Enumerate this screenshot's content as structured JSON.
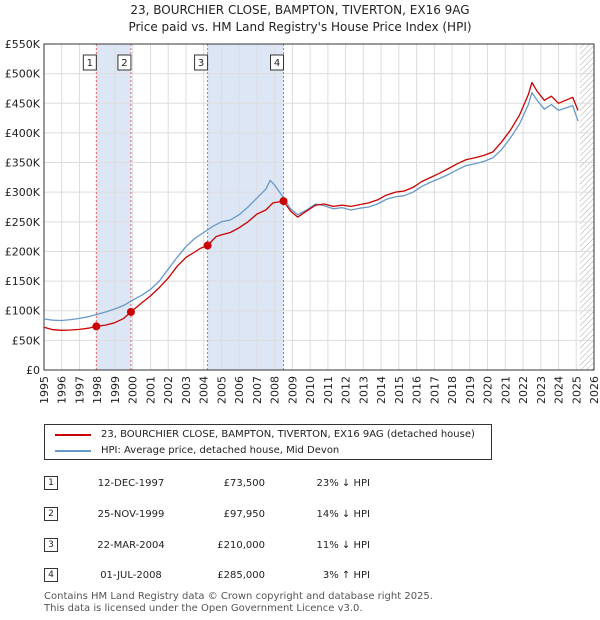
{
  "title_line1": "23, BOURCHIER CLOSE, BAMPTON, TIVERTON, EX16 9AG",
  "title_line2": "Price paid vs. HM Land Registry's House Price Index (HPI)",
  "chart_data": {
    "type": "line",
    "title": "23, BOURCHIER CLOSE, BAMPTON, TIVERTON, EX16 9AG",
    "subtitle": "Price paid vs. HM Land Registry's House Price Index (HPI)",
    "xlabel": "",
    "ylabel": "",
    "xlim": [
      1995,
      2026
    ],
    "ylim": [
      0,
      550000
    ],
    "x_ticks": [
      1995,
      1996,
      1997,
      1998,
      1999,
      2000,
      2001,
      2002,
      2003,
      2004,
      2005,
      2006,
      2007,
      2008,
      2009,
      2010,
      2011,
      2012,
      2013,
      2014,
      2015,
      2016,
      2017,
      2018,
      2019,
      2020,
      2021,
      2022,
      2023,
      2024,
      2025,
      2026
    ],
    "y_ticks": [
      {
        "value": 0,
        "label": "£0"
      },
      {
        "value": 50000,
        "label": "£50K"
      },
      {
        "value": 100000,
        "label": "£100K"
      },
      {
        "value": 150000,
        "label": "£150K"
      },
      {
        "value": 200000,
        "label": "£200K"
      },
      {
        "value": 250000,
        "label": "£250K"
      },
      {
        "value": 300000,
        "label": "£300K"
      },
      {
        "value": 350000,
        "label": "£350K"
      },
      {
        "value": 400000,
        "label": "£400K"
      },
      {
        "value": 450000,
        "label": "£450K"
      },
      {
        "value": 500000,
        "label": "£500K"
      },
      {
        "value": 550000,
        "label": "£550K"
      }
    ],
    "grid": true,
    "data_end": 2025.2,
    "series": [
      {
        "name": "23, BOURCHIER CLOSE, BAMPTON, TIVERTON, EX16 9AG (detached house)",
        "color": "#cc0000",
        "points": [
          [
            1995.0,
            72000
          ],
          [
            1995.5,
            68000
          ],
          [
            1996.0,
            67000
          ],
          [
            1996.5,
            67500
          ],
          [
            1997.0,
            68500
          ],
          [
            1997.5,
            70500
          ],
          [
            1997.95,
            73500
          ],
          [
            1998.5,
            76000
          ],
          [
            1999.0,
            80000
          ],
          [
            1999.5,
            87000
          ],
          [
            1999.9,
            97950
          ],
          [
            2000.5,
            113000
          ],
          [
            2001.0,
            125000
          ],
          [
            2001.5,
            139000
          ],
          [
            2002.0,
            155000
          ],
          [
            2002.5,
            175000
          ],
          [
            2003.0,
            190000
          ],
          [
            2003.5,
            199000
          ],
          [
            2003.8,
            205000
          ],
          [
            2004.22,
            210000
          ],
          [
            2004.7,
            225000
          ],
          [
            2005.0,
            228000
          ],
          [
            2005.5,
            232000
          ],
          [
            2006.0,
            240000
          ],
          [
            2006.5,
            250000
          ],
          [
            2007.0,
            263000
          ],
          [
            2007.5,
            270000
          ],
          [
            2007.9,
            282000
          ],
          [
            2008.5,
            285000
          ],
          [
            2008.9,
            268000
          ],
          [
            2009.3,
            258000
          ],
          [
            2009.8,
            268000
          ],
          [
            2010.3,
            278000
          ],
          [
            2010.8,
            280000
          ],
          [
            2011.3,
            276000
          ],
          [
            2011.8,
            278000
          ],
          [
            2012.3,
            276000
          ],
          [
            2012.8,
            279000
          ],
          [
            2013.3,
            282000
          ],
          [
            2013.8,
            287000
          ],
          [
            2014.3,
            295000
          ],
          [
            2014.8,
            300000
          ],
          [
            2015.3,
            302000
          ],
          [
            2015.8,
            308000
          ],
          [
            2016.3,
            318000
          ],
          [
            2016.8,
            325000
          ],
          [
            2017.3,
            332000
          ],
          [
            2017.8,
            340000
          ],
          [
            2018.3,
            348000
          ],
          [
            2018.8,
            355000
          ],
          [
            2019.3,
            358000
          ],
          [
            2019.8,
            362000
          ],
          [
            2020.3,
            368000
          ],
          [
            2020.8,
            385000
          ],
          [
            2021.3,
            405000
          ],
          [
            2021.8,
            430000
          ],
          [
            2022.3,
            465000
          ],
          [
            2022.5,
            485000
          ],
          [
            2022.8,
            470000
          ],
          [
            2023.2,
            455000
          ],
          [
            2023.6,
            462000
          ],
          [
            2024.0,
            450000
          ],
          [
            2024.4,
            455000
          ],
          [
            2024.8,
            460000
          ],
          [
            2025.1,
            438000
          ]
        ]
      },
      {
        "name": "HPI: Average price, detached house, Mid Devon",
        "color": "#6699cc",
        "points": [
          [
            1995.0,
            86000
          ],
          [
            1995.5,
            84000
          ],
          [
            1996.0,
            83500
          ],
          [
            1996.5,
            85000
          ],
          [
            1997.0,
            87000
          ],
          [
            1997.5,
            90000
          ],
          [
            1998.0,
            94000
          ],
          [
            1998.5,
            98000
          ],
          [
            1999.0,
            103000
          ],
          [
            1999.5,
            109000
          ],
          [
            2000.0,
            118000
          ],
          [
            2000.5,
            126000
          ],
          [
            2001.0,
            136000
          ],
          [
            2001.5,
            150000
          ],
          [
            2002.0,
            170000
          ],
          [
            2002.5,
            190000
          ],
          [
            2003.0,
            208000
          ],
          [
            2003.5,
            222000
          ],
          [
            2004.0,
            232000
          ],
          [
            2004.5,
            242000
          ],
          [
            2005.0,
            250000
          ],
          [
            2005.5,
            253000
          ],
          [
            2006.0,
            262000
          ],
          [
            2006.5,
            275000
          ],
          [
            2007.0,
            290000
          ],
          [
            2007.5,
            305000
          ],
          [
            2007.75,
            320000
          ],
          [
            2008.0,
            312000
          ],
          [
            2008.4,
            295000
          ],
          [
            2008.9,
            272000
          ],
          [
            2009.3,
            262000
          ],
          [
            2009.8,
            270000
          ],
          [
            2010.3,
            280000
          ],
          [
            2010.8,
            277000
          ],
          [
            2011.3,
            272000
          ],
          [
            2011.8,
            274000
          ],
          [
            2012.3,
            270000
          ],
          [
            2012.8,
            273000
          ],
          [
            2013.3,
            275000
          ],
          [
            2013.8,
            280000
          ],
          [
            2014.3,
            288000
          ],
          [
            2014.8,
            292000
          ],
          [
            2015.3,
            294000
          ],
          [
            2015.8,
            300000
          ],
          [
            2016.3,
            310000
          ],
          [
            2016.8,
            317000
          ],
          [
            2017.3,
            323000
          ],
          [
            2017.8,
            330000
          ],
          [
            2018.3,
            338000
          ],
          [
            2018.8,
            345000
          ],
          [
            2019.3,
            348000
          ],
          [
            2019.8,
            352000
          ],
          [
            2020.3,
            358000
          ],
          [
            2020.8,
            372000
          ],
          [
            2021.3,
            392000
          ],
          [
            2021.8,
            415000
          ],
          [
            2022.3,
            448000
          ],
          [
            2022.5,
            468000
          ],
          [
            2022.8,
            455000
          ],
          [
            2023.2,
            440000
          ],
          [
            2023.6,
            448000
          ],
          [
            2024.0,
            438000
          ],
          [
            2024.4,
            442000
          ],
          [
            2024.8,
            446000
          ],
          [
            2025.1,
            420000
          ]
        ]
      }
    ],
    "transactions": [
      {
        "marker": "1",
        "date": "12-DEC-1997",
        "x": 1997.95,
        "price": 73500,
        "price_label": "£73,500",
        "hpi": "23% ↓ HPI"
      },
      {
        "marker": "2",
        "date": "25-NOV-1999",
        "x": 1999.9,
        "price": 97950,
        "price_label": "£97,950",
        "hpi": "14% ↓ HPI"
      },
      {
        "marker": "3",
        "date": "22-MAR-2004",
        "x": 2004.22,
        "price": 210000,
        "price_label": "£210,000",
        "hpi": "11% ↓ HPI"
      },
      {
        "marker": "4",
        "date": "01-JUL-2008",
        "x": 2008.5,
        "price": 285000,
        "price_label": "£285,000",
        "hpi": "3% ↑ HPI"
      }
    ],
    "highlight_ranges": [
      [
        1997.95,
        1999.9
      ],
      [
        2004.22,
        2008.5
      ]
    ]
  },
  "legend": {
    "items": [
      {
        "label": "23, BOURCHIER CLOSE, BAMPTON, TIVERTON, EX16 9AG (detached house)",
        "color": "#cc0000"
      },
      {
        "label": "HPI: Average price, detached house, Mid Devon",
        "color": "#6699cc"
      }
    ]
  },
  "footer": {
    "line1": "Contains HM Land Registry data © Crown copyright and database right 2025.",
    "line2": "This data is licensed under the Open Government Licence v3.0."
  },
  "colors": {
    "grid": "#dddddd",
    "axis": "#333333",
    "highlight": "#dde6f5",
    "vline": "#e06666",
    "hatch": "#aaaaaa"
  }
}
